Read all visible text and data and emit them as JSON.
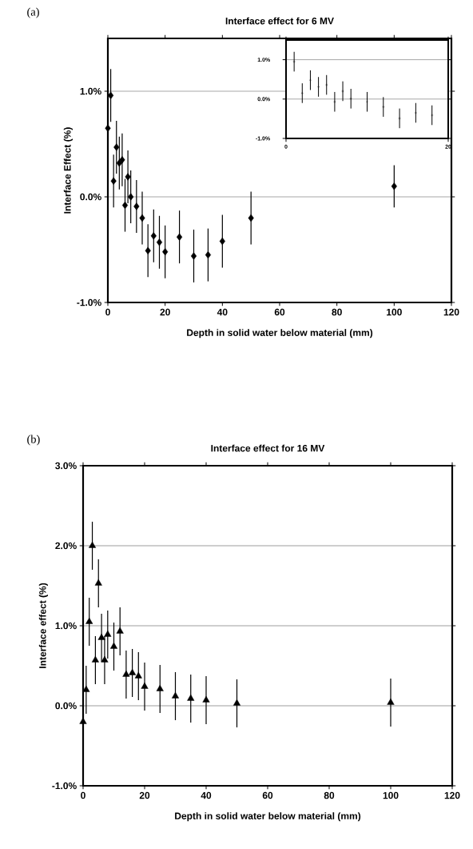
{
  "chart_data": [
    {
      "type": "scatter",
      "title": "Interface effect for 6 MV",
      "xlabel": "Depth in solid water below material (mm)",
      "ylabel": "Interface Effect (%)",
      "annotations": [
        "(a)"
      ],
      "x": [
        0,
        1,
        2,
        3,
        4,
        5,
        6,
        7,
        8,
        10,
        12,
        14,
        16,
        18,
        20,
        25,
        30,
        35,
        40,
        50,
        100
      ],
      "values": [
        0.65,
        0.96,
        0.15,
        0.47,
        0.32,
        0.35,
        -0.08,
        0.19,
        0.0,
        -0.09,
        -0.2,
        -0.51,
        -0.37,
        -0.43,
        -0.52,
        -0.38,
        -0.56,
        -0.55,
        -0.42,
        -0.2,
        0.1
      ],
      "errors": [
        0.25,
        0.25,
        0.25,
        0.25,
        0.25,
        0.25,
        0.25,
        0.25,
        0.25,
        0.25,
        0.25,
        0.25,
        0.25,
        0.25,
        0.25,
        0.25,
        0.25,
        0.25,
        0.25,
        0.25,
        0.2
      ],
      "color": "#000000",
      "marker": "diamond",
      "grid": "y",
      "xlim": [
        0,
        120
      ],
      "xticks": [
        0,
        20,
        40,
        60,
        80,
        100,
        120
      ],
      "ylim": [
        -1.0,
        1.5
      ],
      "yticks": [
        {
          "value": -1.0,
          "label": "-1.0%"
        },
        {
          "value": 0.0,
          "label": "0.0%"
        },
        {
          "value": 1.0,
          "label": "1.0%"
        }
      ]
    },
    {
      "type": "scatter",
      "x": [
        1,
        2,
        3,
        4,
        5,
        6,
        7,
        8,
        10,
        12,
        14,
        16,
        18
      ],
      "values": [
        0.95,
        0.15,
        0.48,
        0.31,
        0.36,
        -0.07,
        0.2,
        0.01,
        -0.07,
        -0.2,
        -0.49,
        -0.35,
        -0.41
      ],
      "errors": [
        0.25,
        0.25,
        0.25,
        0.25,
        0.25,
        0.25,
        0.25,
        0.25,
        0.25,
        0.25,
        0.25,
        0.25,
        0.25
      ],
      "color": "#000000",
      "marker": "cross",
      "grid": "y",
      "xlim": [
        0,
        20
      ],
      "xticks": [
        0,
        20
      ],
      "ylim": [
        -1.0,
        1.5
      ],
      "yticks": [
        {
          "value": -1.0,
          "label": "-1.0%"
        },
        {
          "value": 0.0,
          "label": "0.0%"
        },
        {
          "value": 1.0,
          "label": "1.0%"
        }
      ]
    },
    {
      "type": "scatter",
      "title": "Interface effect for 16 MV",
      "xlabel": "Depth in solid water below material (mm)",
      "ylabel": "Interface effect (%)",
      "annotations": [
        "(b)"
      ],
      "x": [
        0,
        1,
        2,
        3,
        4,
        5,
        6,
        7,
        8,
        10,
        12,
        14,
        16,
        18,
        20,
        25,
        30,
        35,
        40,
        50,
        100
      ],
      "values": [
        -0.2,
        0.2,
        1.05,
        2.0,
        0.57,
        1.53,
        0.85,
        0.57,
        0.89,
        0.74,
        0.93,
        0.39,
        0.41,
        0.37,
        0.24,
        0.21,
        0.12,
        0.09,
        0.07,
        0.03,
        0.04
      ],
      "errors": [
        0.3,
        0.3,
        0.3,
        0.3,
        0.3,
        0.3,
        0.3,
        0.3,
        0.3,
        0.3,
        0.3,
        0.3,
        0.3,
        0.3,
        0.3,
        0.3,
        0.3,
        0.3,
        0.3,
        0.3,
        0.3
      ],
      "color": "#000000",
      "marker": "triangle",
      "grid": "y",
      "xlim": [
        0,
        120
      ],
      "xticks": [
        0,
        20,
        40,
        60,
        80,
        100,
        120
      ],
      "ylim": [
        -1.0,
        3.0
      ],
      "yticks": [
        {
          "value": -1.0,
          "label": "-1.0%"
        },
        {
          "value": 0.0,
          "label": "0.0%"
        },
        {
          "value": 1.0,
          "label": "1.0%"
        },
        {
          "value": 2.0,
          "label": "2.0%"
        },
        {
          "value": 3.0,
          "label": "3.0%"
        }
      ]
    }
  ]
}
